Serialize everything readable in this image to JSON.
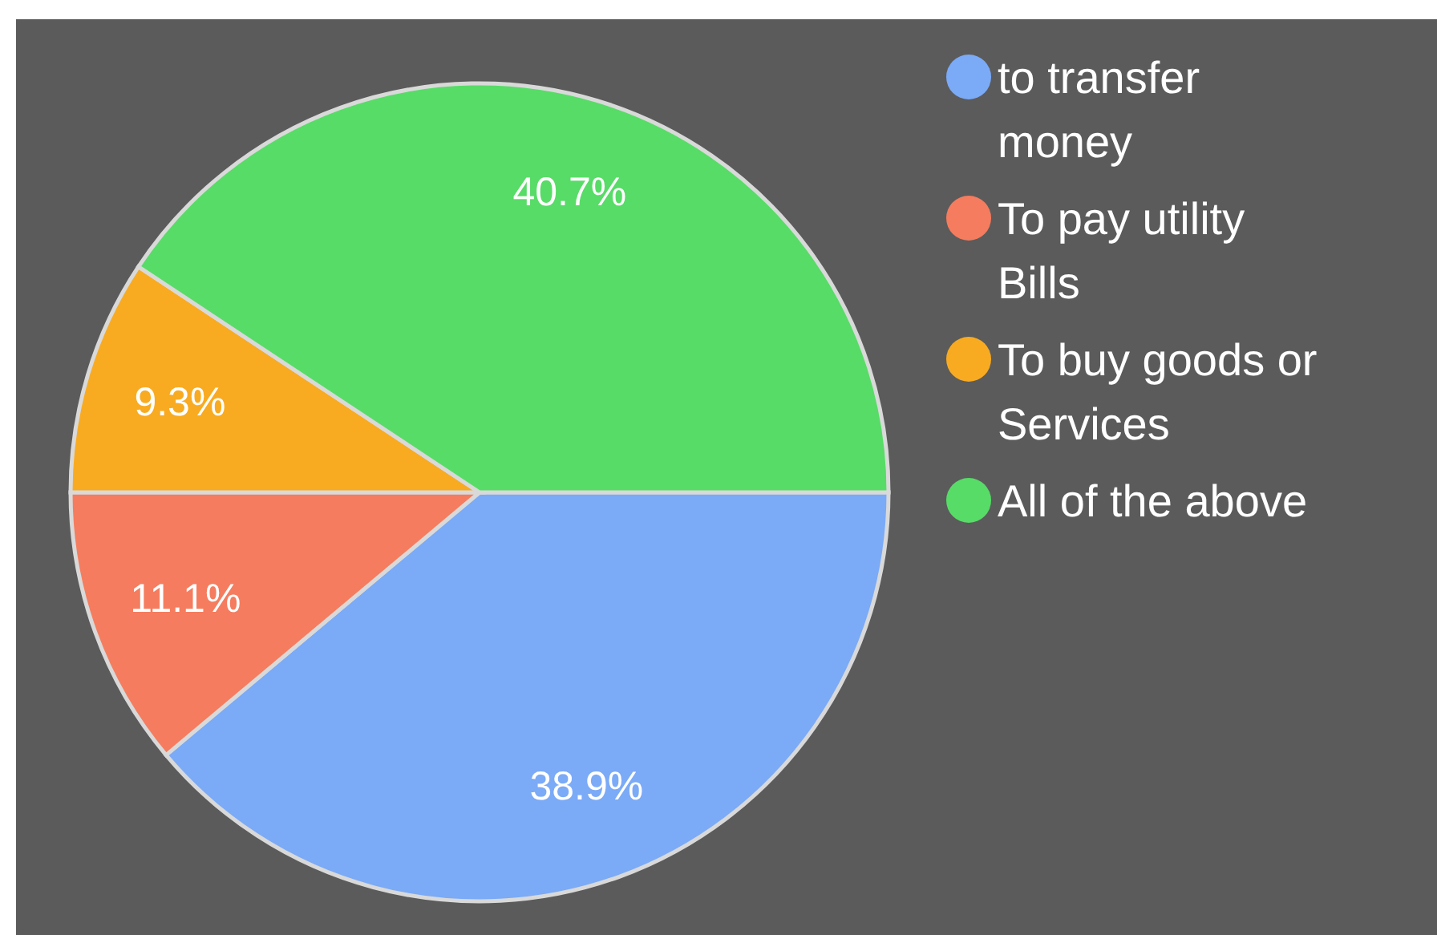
{
  "chart_data": {
    "type": "pie",
    "categories": [
      "to transfer money",
      "To pay utility Bills",
      "To buy goods or Services",
      "All of the above"
    ],
    "values": [
      38.9,
      11.1,
      9.3,
      40.7
    ],
    "colors": [
      "#7baaf7",
      "#f57c5e",
      "#f8ab21",
      "#57dc67"
    ],
    "value_labels": [
      "38.9%",
      "11.1%",
      "9.3%",
      "40.7%"
    ],
    "legend": "right"
  }
}
